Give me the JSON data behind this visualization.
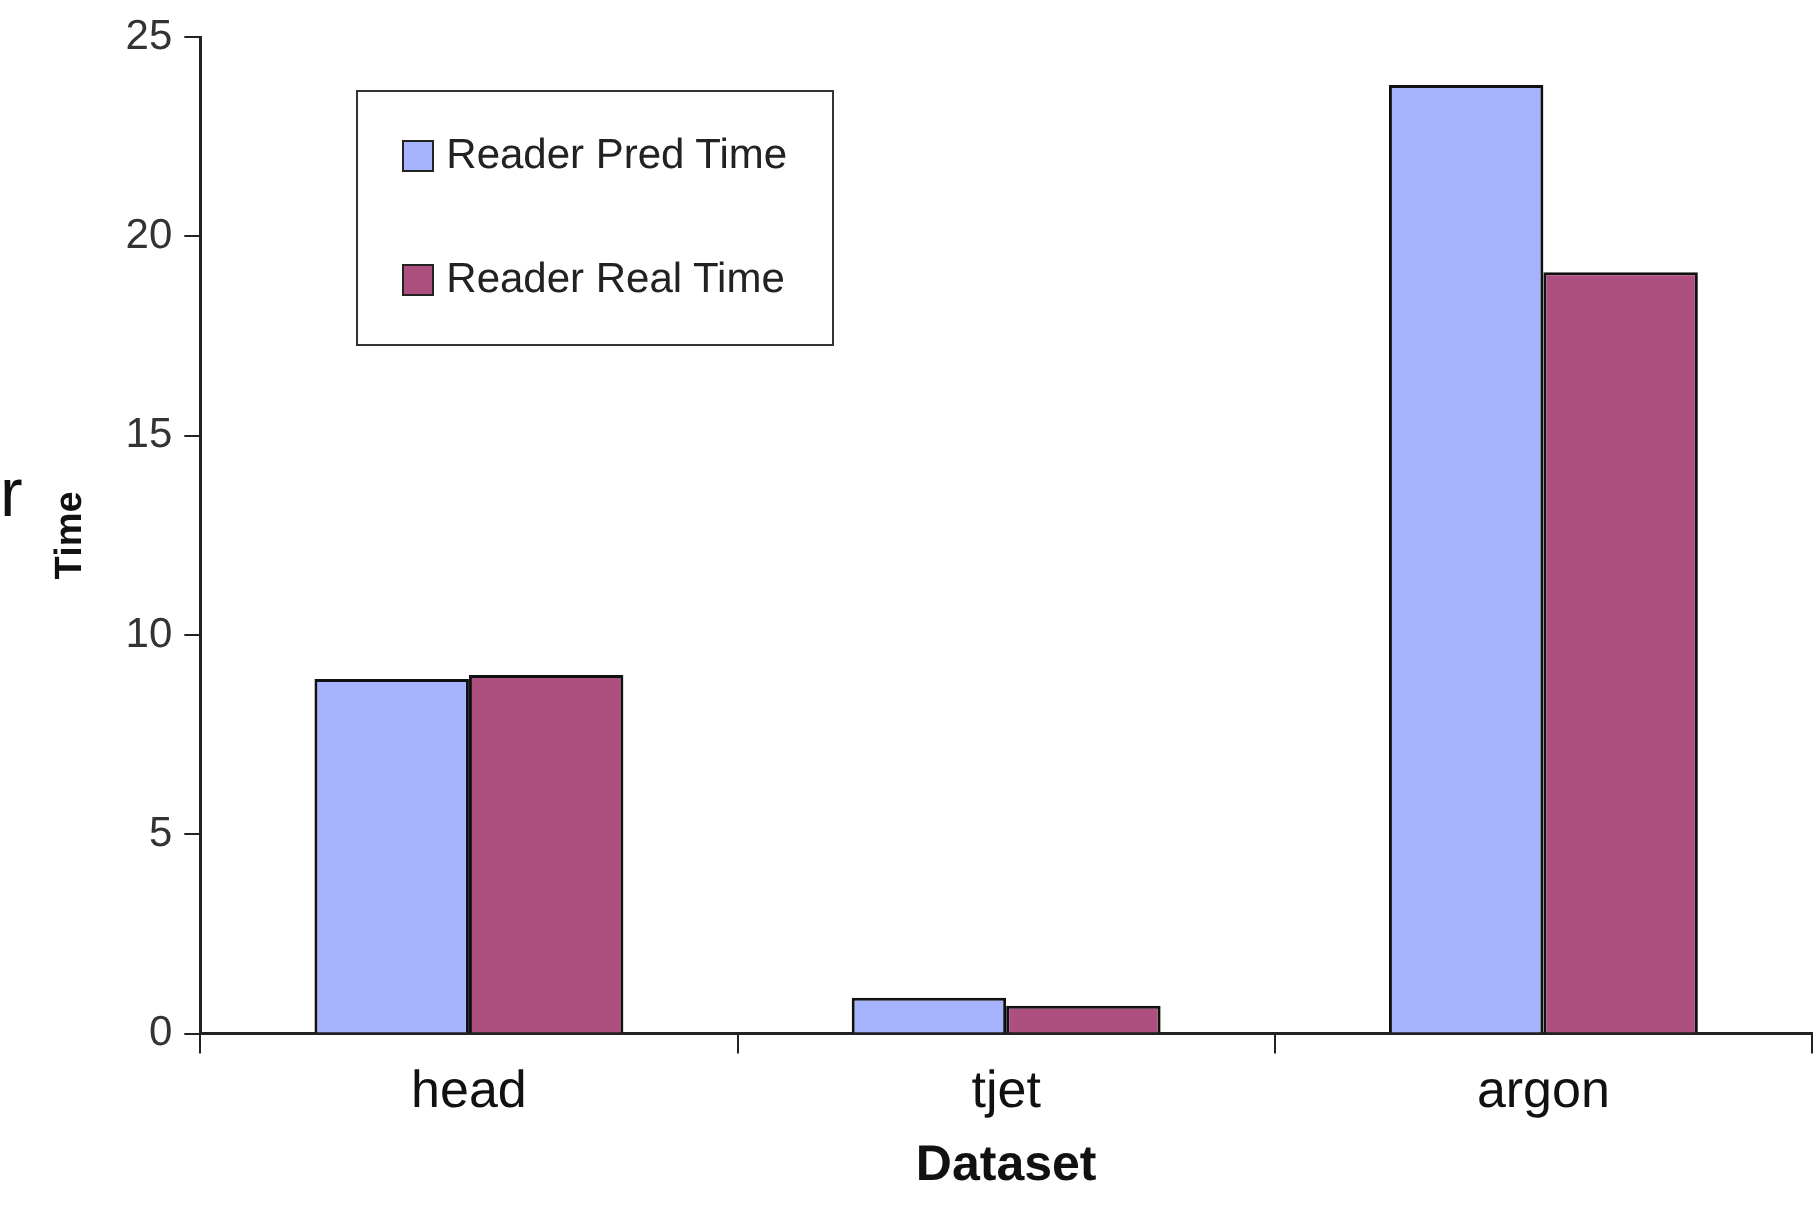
{
  "chart_data": {
    "type": "bar",
    "xlabel": "Dataset",
    "ylabel": "Time",
    "annotations": [
      "r"
    ],
    "categories": [
      "head",
      "tjet",
      "argon"
    ],
    "series": [
      {
        "name": "Reader Pred Time",
        "color": "#a6b4ff",
        "values": [
          8.9,
          0.9,
          23.8
        ]
      },
      {
        "name": "Reader Real Time",
        "color": "#ad5080",
        "values": [
          9.0,
          0.7,
          19.1
        ]
      }
    ],
    "ylim": [
      0,
      25
    ],
    "yticks": [
      0,
      5,
      10,
      15,
      20,
      25
    ],
    "grid": false,
    "legend": "top left"
  }
}
